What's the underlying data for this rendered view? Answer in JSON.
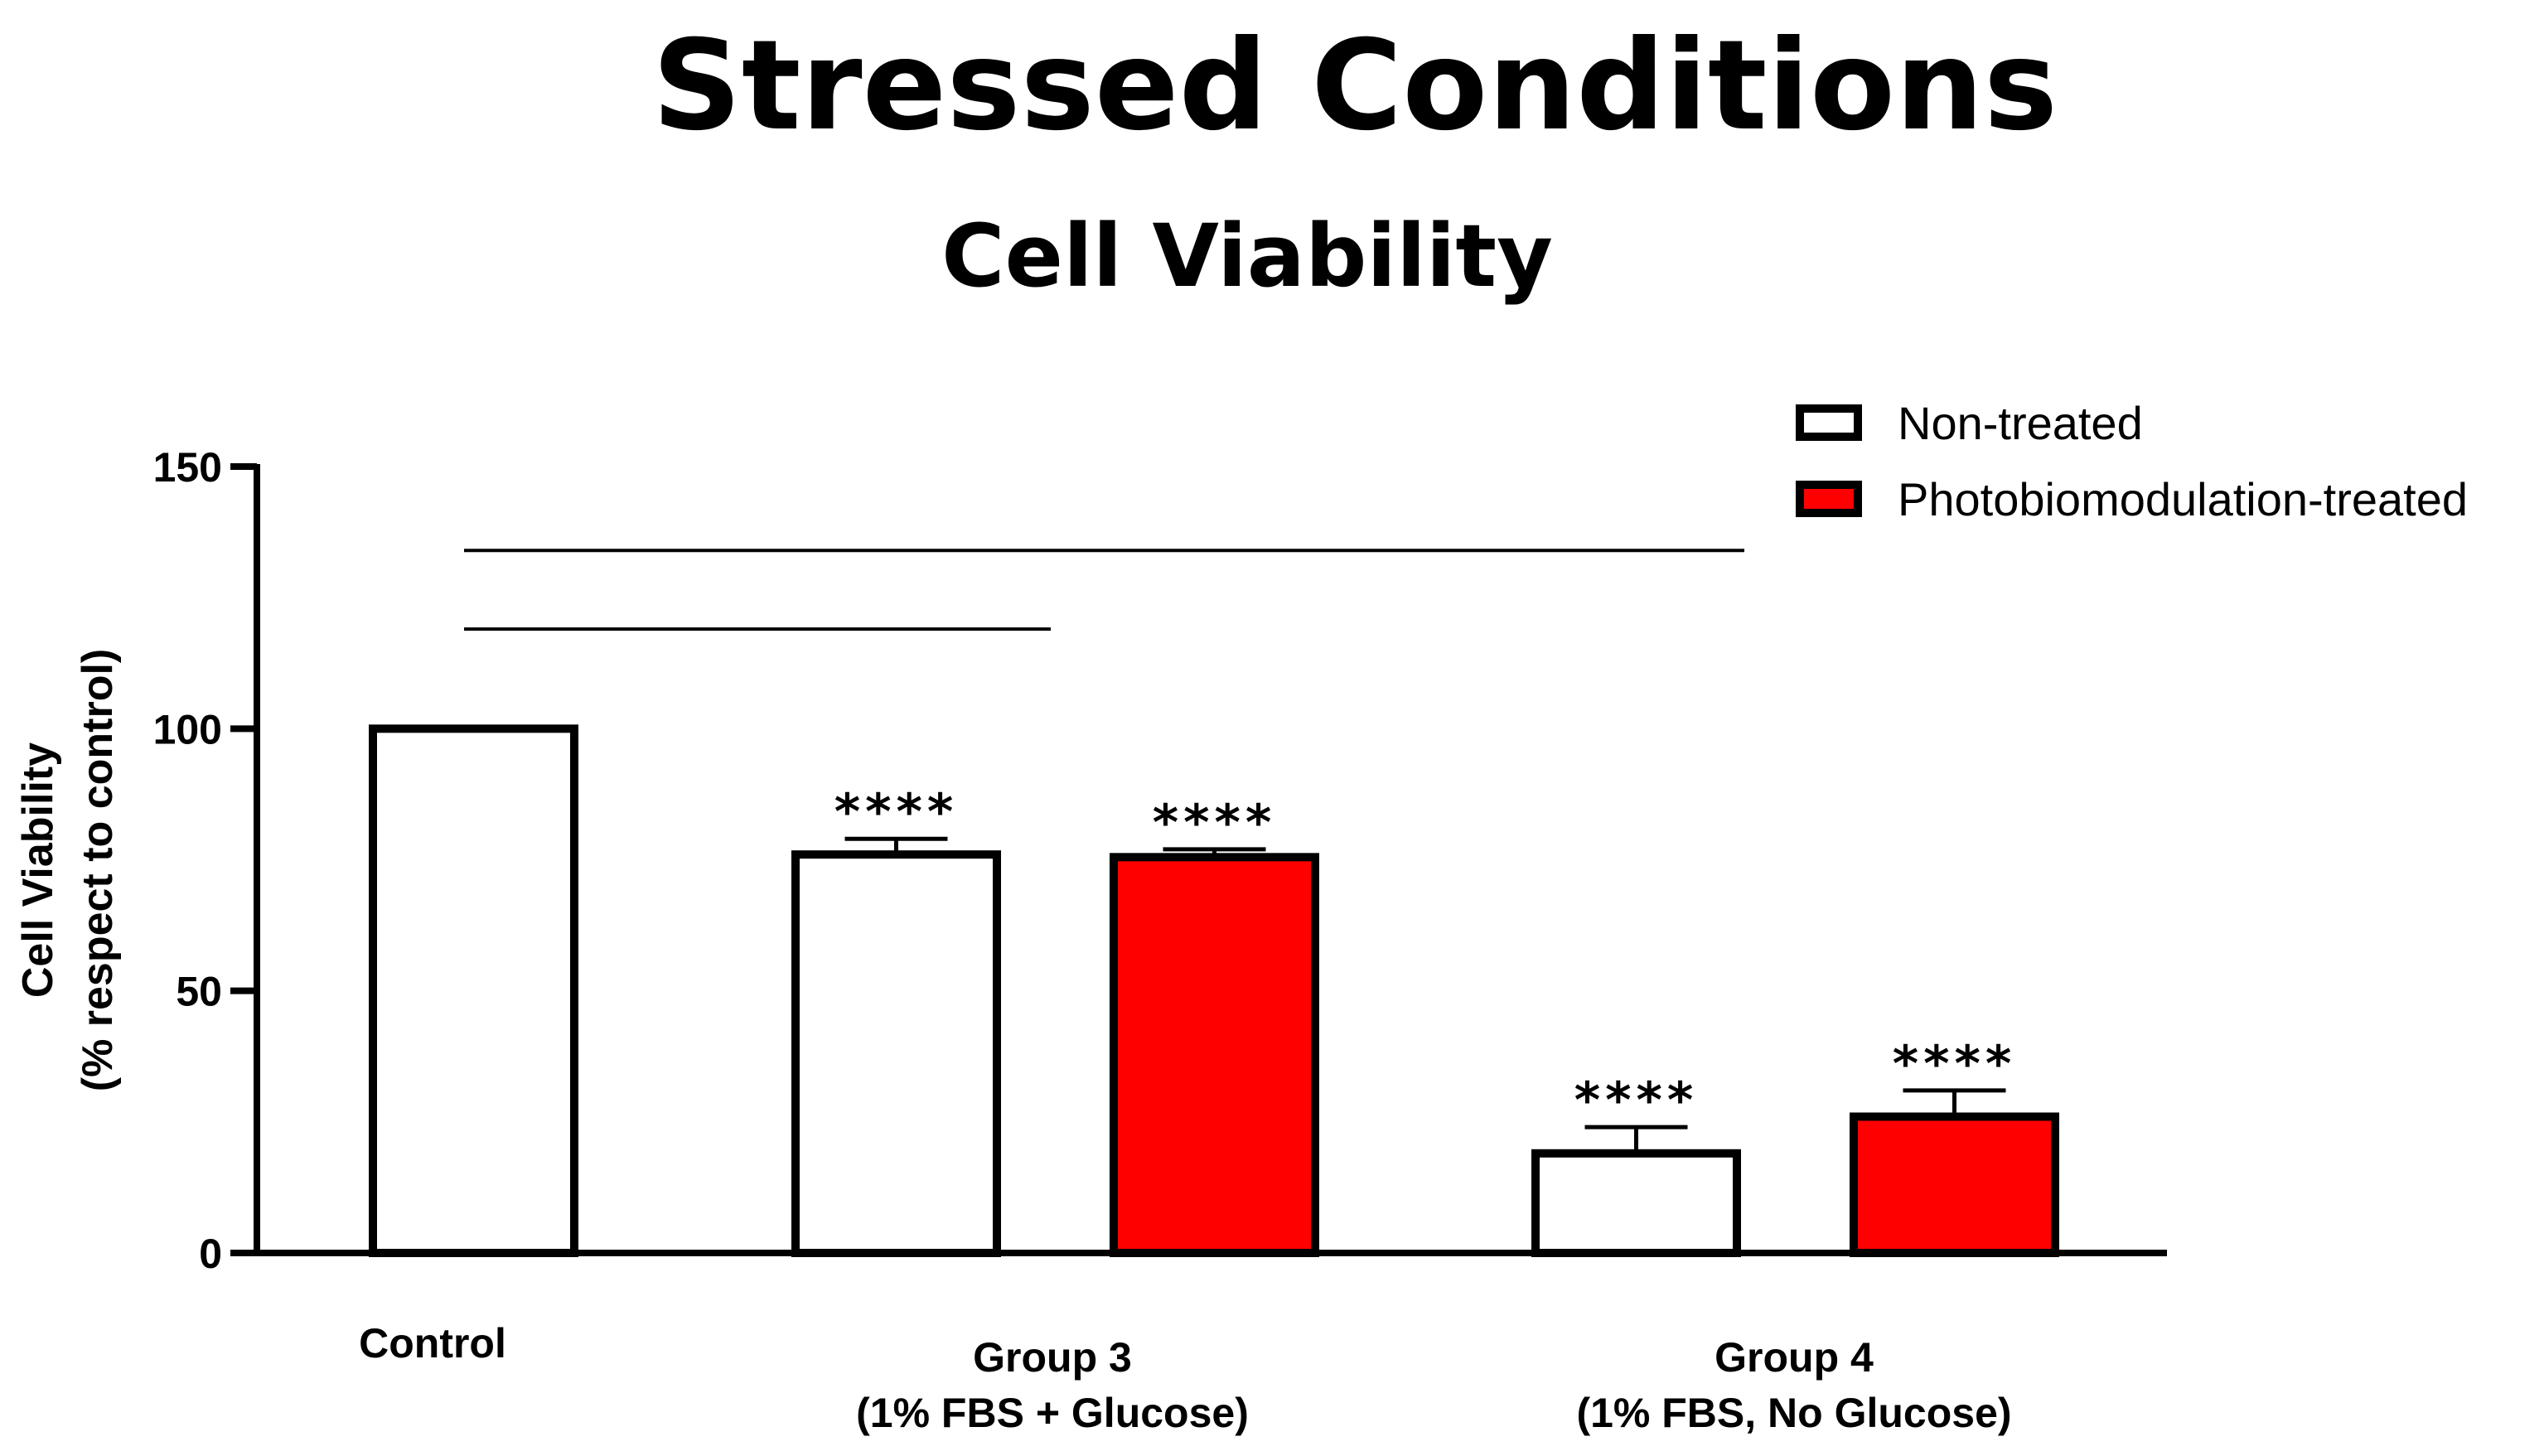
{
  "chart_data": {
    "type": "bar",
    "title": "Stressed Conditions",
    "subtitle": "Cell Viability",
    "ylabel_line1": "Cell Viability",
    "ylabel_line2": "(% respect to control)",
    "ylim": [
      0,
      150
    ],
    "yticks": [
      0,
      50,
      100,
      150
    ],
    "ytick_labels": [
      "0",
      "50",
      "100",
      "150"
    ],
    "categories": [
      {
        "label_line1": "Control",
        "label_line2": ""
      },
      {
        "label_line1": "Group 3",
        "label_line2": "(1% FBS + Glucose)"
      },
      {
        "label_line1": "Group 4",
        "label_line2": "(1% FBS, No Glucose)"
      }
    ],
    "series": [
      {
        "name": "Non-treated",
        "color": "#ffffff"
      },
      {
        "name": "Photobiomodulation-treated",
        "color": "#ff0000"
      }
    ],
    "bars": [
      {
        "category": "Control",
        "series": "Non-treated",
        "value": 100,
        "error": 0,
        "significance": ""
      },
      {
        "category": "Group 3",
        "series": "Non-treated",
        "value": 76,
        "error": 3,
        "significance": "****"
      },
      {
        "category": "Group 3",
        "series": "Photobiomodulation-treated",
        "value": 75.5,
        "error": 1.5,
        "significance": "****"
      },
      {
        "category": "Group 4",
        "series": "Non-treated",
        "value": 19,
        "error": 5,
        "significance": "****"
      },
      {
        "category": "Group 4",
        "series": "Photobiomodulation-treated",
        "value": 26,
        "error": 5,
        "significance": "****"
      }
    ],
    "comparison_lines": [
      {
        "y": 134,
        "from": "Control",
        "to": "Group 4"
      },
      {
        "y": 119,
        "from": "Control",
        "to": "Group 3"
      }
    ],
    "legend_position": "top-right"
  }
}
